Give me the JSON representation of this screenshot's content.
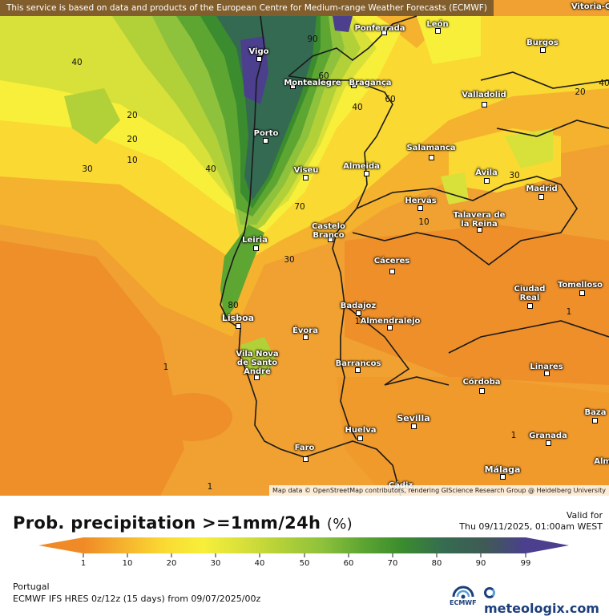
{
  "map": {
    "notice": "This service is based on data and products of the European Centre for Medium-range Weather Forecasts (ECMWF)",
    "attribution": "Map data © OpenStreetMap contributors, rendering GIScience Research Group @ Heidelberg University",
    "cities": [
      {
        "id": "vitoria",
        "label": "Vitoria-G"
      },
      {
        "id": "ponferrada",
        "label": "Ponferrada"
      },
      {
        "id": "leon",
        "label": "León"
      },
      {
        "id": "vigo",
        "label": "Vigo"
      },
      {
        "id": "burgos",
        "label": "Burgos"
      },
      {
        "id": "montealegre",
        "label": "Montealegre"
      },
      {
        "id": "braganca",
        "label": "Bragança"
      },
      {
        "id": "valladolid",
        "label": "Valladolid"
      },
      {
        "id": "porto",
        "label": "Porto"
      },
      {
        "id": "salamanca",
        "label": "Salamanca"
      },
      {
        "id": "viseu",
        "label": "Viseu"
      },
      {
        "id": "almeida",
        "label": "Almeida"
      },
      {
        "id": "avila",
        "label": "Ávila"
      },
      {
        "id": "madrid",
        "label": "Madrid"
      },
      {
        "id": "hervas",
        "label": "Hervás"
      },
      {
        "id": "talavera",
        "label": "Talavera de la Reina"
      },
      {
        "id": "castelo",
        "label": "Castelo Branco"
      },
      {
        "id": "leiria",
        "label": "Leiria"
      },
      {
        "id": "caceres",
        "label": "Cáceres"
      },
      {
        "id": "ciudadreal",
        "label": "Ciudad Real"
      },
      {
        "id": "tomelloso",
        "label": "Tomelloso"
      },
      {
        "id": "badajoz",
        "label": "Badajoz"
      },
      {
        "id": "lisboa",
        "label": "Lisboa"
      },
      {
        "id": "almendralejo",
        "label": "Almendralejo"
      },
      {
        "id": "evora",
        "label": "Évora"
      },
      {
        "id": "vilanova",
        "label": "Vila Nova de Santo André"
      },
      {
        "id": "barrancos",
        "label": "Barrancos"
      },
      {
        "id": "linares",
        "label": "Linares"
      },
      {
        "id": "cordoba",
        "label": "Córdoba"
      },
      {
        "id": "sevilla",
        "label": "Sevilla"
      },
      {
        "id": "baza",
        "label": "Baza"
      },
      {
        "id": "huelva",
        "label": "Huelva"
      },
      {
        "id": "granada",
        "label": "Granada"
      },
      {
        "id": "faro",
        "label": "Faro"
      },
      {
        "id": "malaga",
        "label": "Málaga"
      },
      {
        "id": "almeria",
        "label": "Alm"
      },
      {
        "id": "cadiz",
        "label": "Cádiz"
      }
    ],
    "isoline_labels": [
      "40",
      "90",
      "20",
      "20",
      "40",
      "60",
      "40",
      "10",
      "30",
      "20",
      "40",
      "70",
      "10",
      "30",
      "30",
      "60",
      "80",
      "1",
      "1",
      "1",
      "1",
      "1"
    ]
  },
  "legend": {
    "title": "Prob. precipitation >=1mm/24h",
    "unit": "(%)",
    "valid_label": "Valid for",
    "valid_time": "Thu 09/11/2025, 01:00am WEST",
    "ticks": [
      "1",
      "10",
      "20",
      "30",
      "40",
      "50",
      "60",
      "70",
      "80",
      "90",
      "99"
    ],
    "colors": [
      "#f08a26",
      "#f5b22e",
      "#fad932",
      "#f7ef3a",
      "#d8e03a",
      "#b2d038",
      "#8ec13c",
      "#5ea632",
      "#3b8c2e",
      "#356a52",
      "#3f5a55",
      "#4b3f8e"
    ]
  },
  "footer": {
    "region": "Portugal",
    "model": "ECMWF IFS HRES 0z/12z (15 days) from  09/07/2025/00z",
    "ecmwf_logo": "ECMWF",
    "brand": "meteologix.com"
  }
}
